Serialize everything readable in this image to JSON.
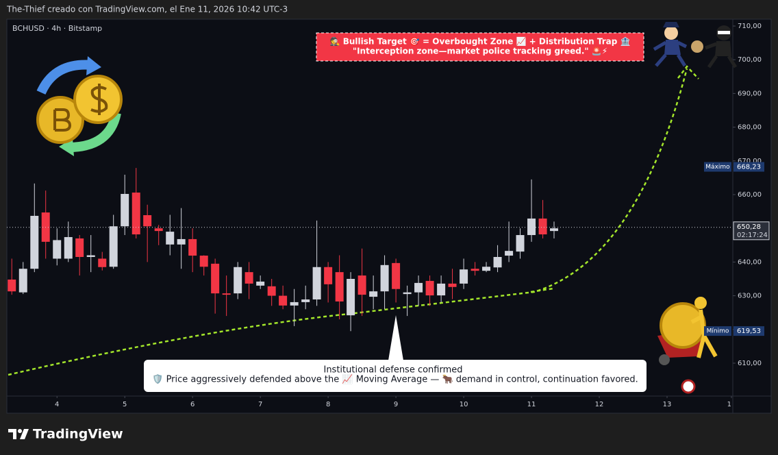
{
  "header": {
    "credit": "The-Thief creado con TradingView.com, el Ene 11, 2026 10:42 UTC-3",
    "brand": "TradingView"
  },
  "chart_data": {
    "type": "candlestick",
    "title": "BCHUSD · 4h · Bitstamp",
    "x": [
      3.333,
      3.5,
      3.667,
      3.833,
      4,
      4.167,
      4.333,
      4.5,
      4.667,
      4.833,
      5,
      5.167,
      5.333,
      5.5,
      5.667,
      5.833,
      6,
      6.167,
      6.333,
      6.5,
      6.667,
      6.833,
      7,
      7.167,
      7.333,
      7.5,
      7.667,
      7.833,
      8,
      8.167,
      8.333,
      8.5,
      8.667,
      8.833,
      9,
      9.167,
      9.333,
      9.5,
      9.667,
      9.833,
      10,
      10.167,
      10.333,
      10.5,
      10.667,
      10.833,
      11,
      11.167,
      11.333
    ],
    "open": [
      634.8,
      631,
      638,
      654.7,
      641,
      641,
      647,
      641.5,
      641,
      638.6,
      650.6,
      660.6,
      653.9,
      650,
      645.2,
      645.2,
      646.8,
      641.9,
      639.5,
      630.7,
      630.7,
      637,
      633,
      632.8,
      630,
      627.1,
      628.1,
      628.9,
      638.5,
      637,
      624.2,
      636,
      629.7,
      631.3,
      639.7,
      630.5,
      631,
      634.4,
      630.1,
      633.6,
      633.6,
      638,
      637.4,
      638.4,
      641.9,
      643.1,
      648,
      652.9,
      649.2
    ],
    "high": [
      641,
      640,
      663.3,
      661.2,
      650,
      652,
      648,
      648,
      643,
      654,
      665.9,
      667.9,
      657,
      651,
      654,
      656,
      650,
      642,
      641,
      636,
      640,
      640,
      636,
      635,
      633,
      632,
      633,
      652.3,
      640,
      642,
      637,
      644,
      636,
      642,
      641,
      633,
      636,
      636,
      636,
      638,
      641,
      640,
      640,
      645,
      652,
      650,
      664.5,
      658.4,
      652
    ],
    "low": [
      630.3,
      630.5,
      637,
      641,
      639,
      640,
      636,
      637,
      637.5,
      638,
      648,
      647,
      640,
      645,
      642,
      638,
      637,
      636,
      624.7,
      624,
      629,
      629,
      632,
      627,
      626,
      621,
      626,
      627,
      628,
      623,
      619.5,
      624,
      626,
      626,
      628,
      624,
      627,
      627,
      628,
      629,
      632,
      636,
      637,
      637,
      640,
      641,
      646,
      647,
      647
    ],
    "close": [
      631.3,
      638,
      653.7,
      646,
      646.5,
      647.4,
      641.5,
      642,
      638.5,
      650.6,
      660.2,
      648.2,
      650.6,
      649.2,
      649,
      646.8,
      641.9,
      638.6,
      630.7,
      630.3,
      638.5,
      633.6,
      634.2,
      630,
      627.1,
      628.1,
      628.9,
      638.5,
      633.4,
      628.3,
      635,
      630.3,
      631.3,
      639.1,
      632,
      631,
      633.8,
      630.1,
      633.6,
      632.6,
      637.8,
      637.4,
      638.6,
      641.5,
      643.3,
      648,
      652.9,
      648.2,
      650
    ],
    "up_color": "#d1d4dc",
    "down_color": "#f23645",
    "xlim": [
      3.26,
      13.97
    ],
    "ylim": [
      600.24,
      712.03
    ],
    "xticks": [
      4,
      5,
      6,
      7,
      8,
      9,
      10,
      11,
      12,
      13,
      {
        "value": 14,
        "label": "1"
      }
    ],
    "yticks": [
      {
        "value": 610,
        "label": "610,00"
      },
      {
        "value": 620,
        "label": "620,00"
      },
      {
        "value": 630,
        "label": "630,00"
      },
      {
        "value": 640,
        "label": "640,00"
      },
      {
        "value": 650,
        "label": "650,00"
      },
      {
        "value": 660,
        "label": "660,00"
      },
      {
        "value": 670,
        "label": "670,00"
      },
      {
        "value": 680,
        "label": "680,00"
      },
      {
        "value": 690,
        "label": "690,00"
      },
      {
        "value": 700,
        "label": "700,00"
      },
      {
        "value": 710,
        "label": "710,00"
      }
    ],
    "grid": false,
    "markers": [
      {
        "name": "Máximo",
        "value": 668.23,
        "value_label": "668,23"
      },
      {
        "name": "Mínimo",
        "value": 619.53,
        "value_label": "619,53"
      }
    ],
    "last_price": {
      "value": 650.28,
      "value_label": "650,28",
      "countdown": "02:17:24"
    },
    "annotations": [
      {
        "lines": [
          "🕵️ Bullish Target 🎯 = Overbought Zone 📈 + Distribution Trap 🏦",
          "\"Interception zone—market police tracking greed.\" 🚨⚡"
        ]
      },
      {
        "lines": [
          "Institutional defense confirmed",
          "🛡️ Price aggressively defended above the 📈 Moving Average — 🐂 demand in control, continuation favored."
        ]
      }
    ]
  }
}
